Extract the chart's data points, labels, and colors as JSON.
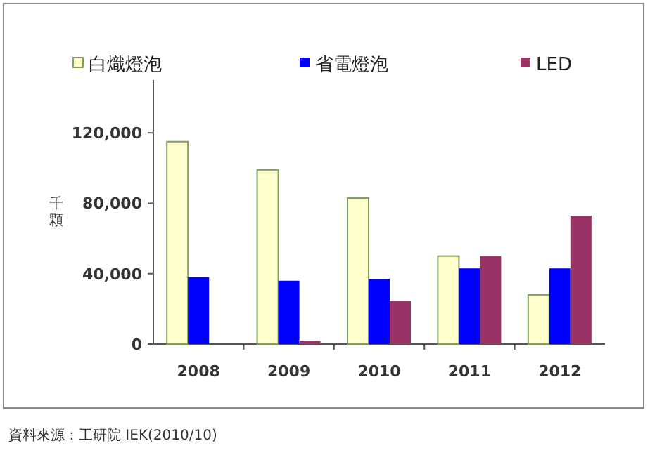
{
  "chart_data": {
    "type": "bar",
    "ylabel": "千顆",
    "categories": [
      "2008",
      "2009",
      "2010",
      "2011",
      "2012"
    ],
    "series": [
      {
        "name": "白熾燈泡",
        "color": "#ffffcc",
        "values": [
          115000,
          99000,
          83000,
          50000,
          28000
        ]
      },
      {
        "name": "省電燈泡",
        "color": "#0000ff",
        "values": [
          38000,
          36000,
          37000,
          43000,
          43000
        ]
      },
      {
        "name": "LED",
        "color": "#993366",
        "values": [
          null,
          2000,
          24500,
          50000,
          73000
        ]
      }
    ],
    "ylim": [
      0,
      150000
    ],
    "yticks": [
      {
        "value": 0,
        "label": "0"
      },
      {
        "value": 40000,
        "label": "40,000"
      },
      {
        "value": 80000,
        "label": "80,000"
      },
      {
        "value": 120000,
        "label": "120,000"
      }
    ],
    "legend": "top",
    "annotations": [
      "資料來源：工研院 IEK(2010/10)"
    ]
  }
}
